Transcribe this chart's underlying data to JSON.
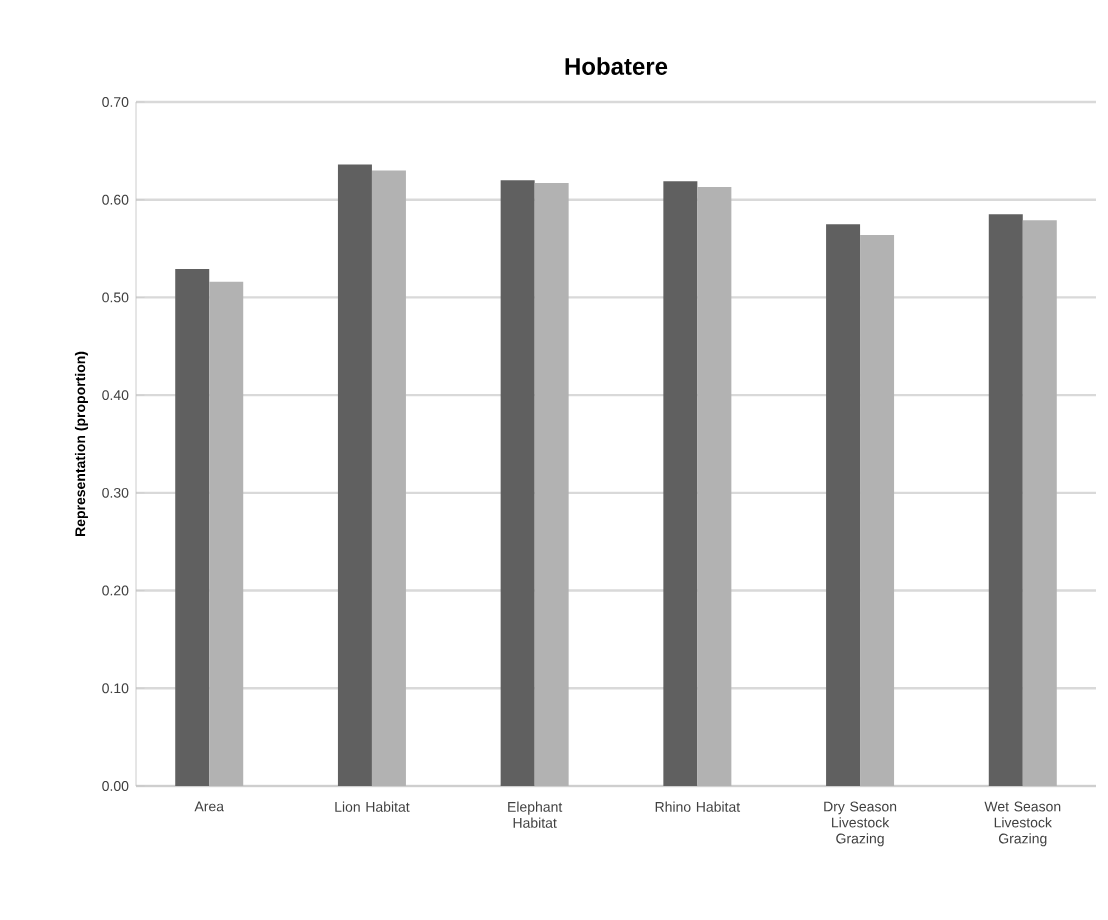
{
  "chart_data": {
    "type": "bar",
    "title": "Hobatere",
    "ylabel": "Representation (proportion)",
    "categories": [
      "Area",
      "Lion Habitat",
      "Elephant Habitat",
      "Rhino Habitat",
      "Dry Season Livestock Grazing",
      "Wet Season Livestock Grazing"
    ],
    "series": [
      {
        "color": "#606060",
        "values": [
          0.529,
          0.636,
          0.62,
          0.619,
          0.575,
          0.585
        ]
      },
      {
        "color": "#b2b2b2",
        "values": [
          0.516,
          0.63,
          0.617,
          0.613,
          0.564,
          0.579
        ]
      }
    ],
    "ylim": [
      0,
      0.7
    ],
    "yticks": [
      {
        "value": 0,
        "label": "0.00"
      },
      {
        "value": 0.1,
        "label": "0.10"
      },
      {
        "value": 0.2,
        "label": "0.20"
      },
      {
        "value": 0.3,
        "label": "0.30"
      },
      {
        "value": 0.4,
        "label": "0.40"
      },
      {
        "value": 0.5,
        "label": "0.50"
      },
      {
        "value": 0.6,
        "label": "0.60"
      },
      {
        "value": 0.7,
        "label": "0.70"
      }
    ],
    "grid": "y"
  }
}
